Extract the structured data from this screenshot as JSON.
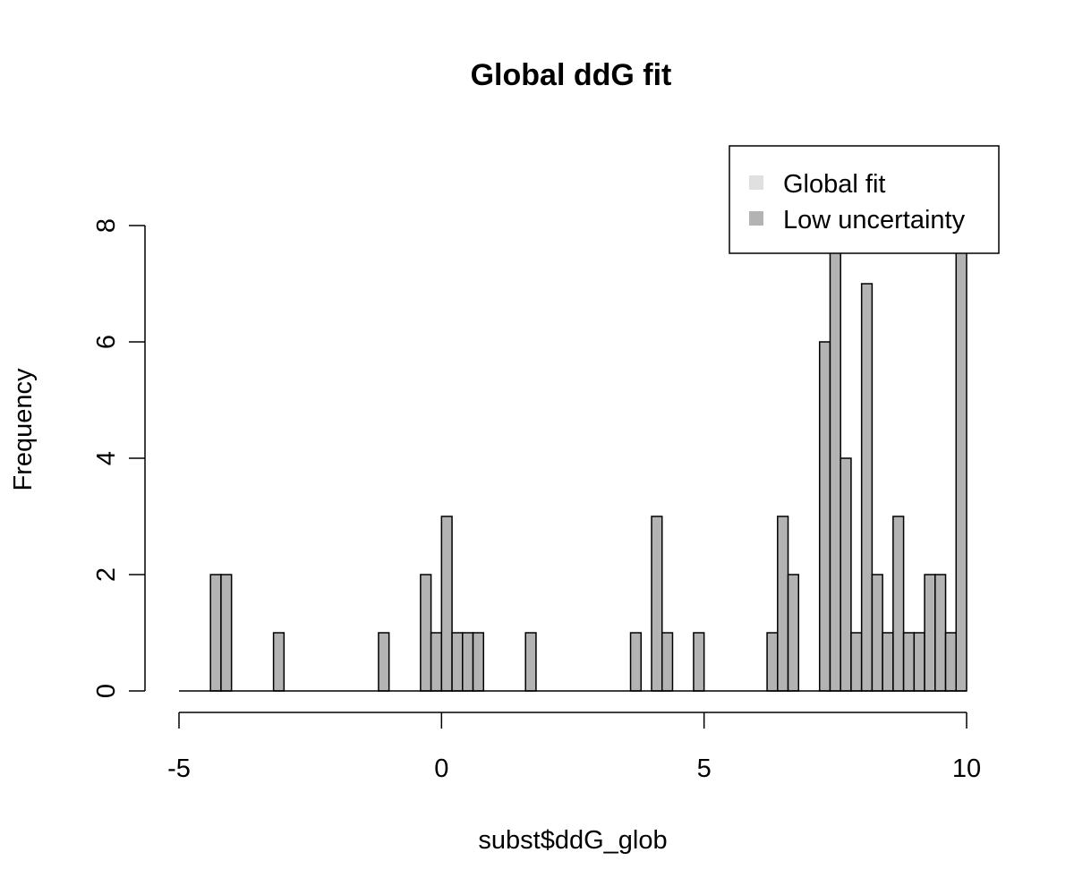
{
  "chart_data": {
    "type": "bar",
    "title": "Global ddG fit",
    "xlabel": "subst$ddG_glob",
    "ylabel": "Frequency",
    "xlim": [
      -5,
      10
    ],
    "ylim": [
      0,
      8
    ],
    "x_ticks": [
      "-5",
      "0",
      "5",
      "10"
    ],
    "y_ticks": [
      "0",
      "2",
      "4",
      "6",
      "8"
    ],
    "bin_width": 0.2,
    "bin_start": -5,
    "legend": {
      "position": "top-right",
      "entries": [
        {
          "label": "Global fit",
          "color": "#e0e0e0"
        },
        {
          "label": "Low uncertainty",
          "color": "#b3b3b3"
        }
      ]
    },
    "series": [
      {
        "name": "Low uncertainty",
        "color": "#b3b3b3",
        "bins": [
          {
            "x": -4.4,
            "count": 2
          },
          {
            "x": -4.2,
            "count": 2
          },
          {
            "x": -3.2,
            "count": 1
          },
          {
            "x": -1.2,
            "count": 1
          },
          {
            "x": -0.4,
            "count": 2
          },
          {
            "x": -0.2,
            "count": 1
          },
          {
            "x": 0.0,
            "count": 3
          },
          {
            "x": 0.2,
            "count": 1
          },
          {
            "x": 0.4,
            "count": 1
          },
          {
            "x": 0.6,
            "count": 1
          },
          {
            "x": 1.6,
            "count": 1
          },
          {
            "x": 3.6,
            "count": 1
          },
          {
            "x": 4.0,
            "count": 3
          },
          {
            "x": 4.2,
            "count": 1
          },
          {
            "x": 4.8,
            "count": 1
          },
          {
            "x": 6.2,
            "count": 1
          },
          {
            "x": 6.4,
            "count": 3
          },
          {
            "x": 6.6,
            "count": 2
          },
          {
            "x": 7.2,
            "count": 6
          },
          {
            "x": 7.4,
            "count": 8
          },
          {
            "x": 7.6,
            "count": 4
          },
          {
            "x": 7.8,
            "count": 1
          },
          {
            "x": 8.0,
            "count": 7
          },
          {
            "x": 8.2,
            "count": 2
          },
          {
            "x": 8.4,
            "count": 1
          },
          {
            "x": 8.6,
            "count": 3
          },
          {
            "x": 8.8,
            "count": 1
          },
          {
            "x": 9.0,
            "count": 1
          },
          {
            "x": 9.2,
            "count": 2
          },
          {
            "x": 9.4,
            "count": 2
          },
          {
            "x": 9.6,
            "count": 1
          },
          {
            "x": 9.8,
            "count": 8
          }
        ]
      }
    ],
    "grid": false
  }
}
